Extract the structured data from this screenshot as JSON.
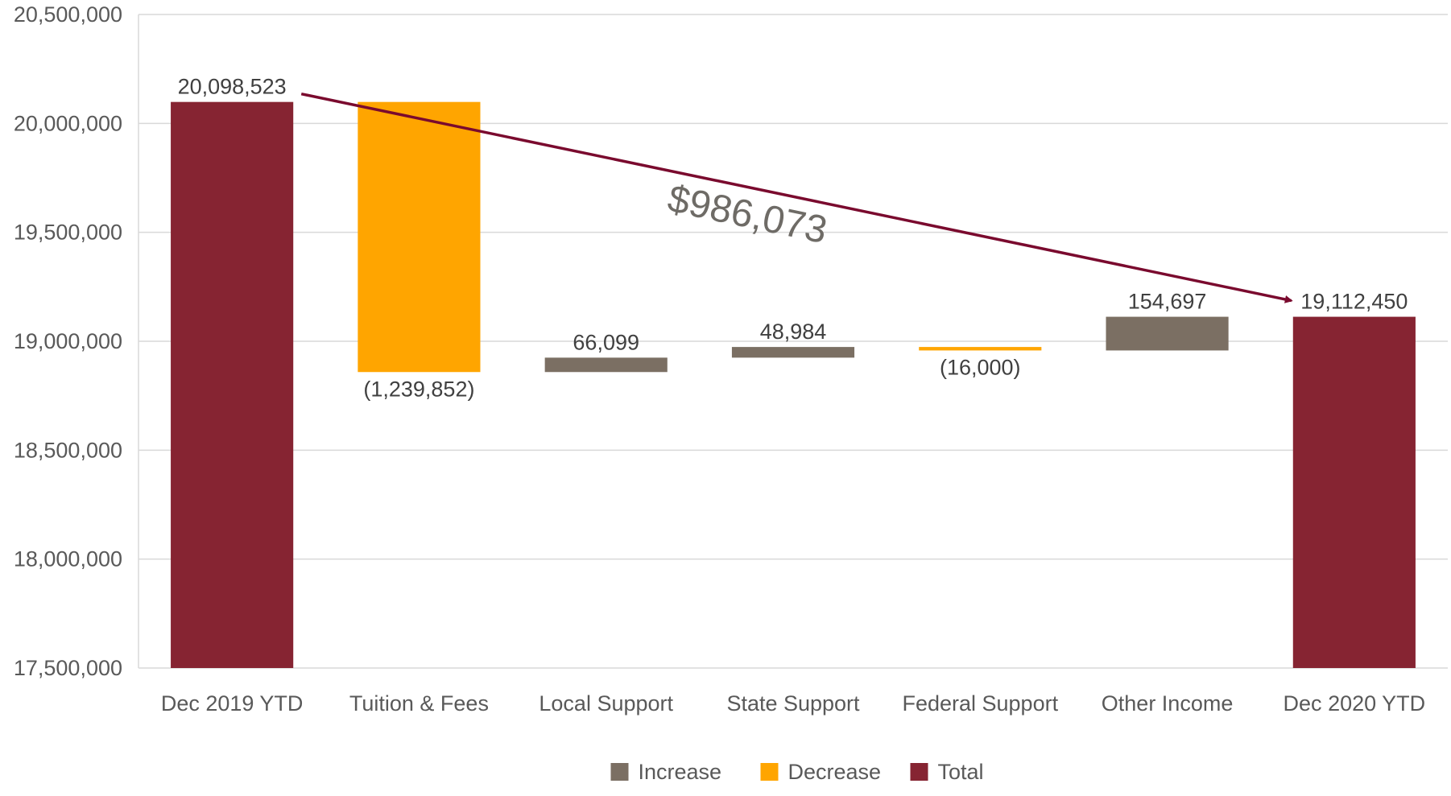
{
  "chart_data": {
    "type": "bar",
    "subtype": "waterfall",
    "title": "",
    "xlabel": "",
    "ylabel": "",
    "ylim": [
      17500000,
      20500000
    ],
    "yticks": [
      "17,500,000",
      "18,000,000",
      "18,500,000",
      "19,000,000",
      "19,500,000",
      "20,000,000",
      "20,500,000"
    ],
    "ytick_values": [
      17500000,
      18000000,
      18500000,
      19000000,
      19500000,
      20000000,
      20500000
    ],
    "grid": true,
    "categories": [
      "Dec 2019 YTD",
      "Tuition & Fees",
      "Local Support",
      "State Support",
      "Federal Support",
      "Other Income",
      "Dec 2020 YTD"
    ],
    "bars": [
      {
        "kind": "Total",
        "start": 17500000,
        "end": 20098523,
        "label": "20,098,523"
      },
      {
        "kind": "Decrease",
        "start": 20098523,
        "end": 18858671,
        "label": "(1,239,852)"
      },
      {
        "kind": "Increase",
        "start": 18858671,
        "end": 18924770,
        "label": "66,099"
      },
      {
        "kind": "Increase",
        "start": 18924770,
        "end": 18973754,
        "label": "48,984"
      },
      {
        "kind": "Decrease",
        "start": 18973754,
        "end": 18957754,
        "label": "(16,000)"
      },
      {
        "kind": "Increase",
        "start": 18957754,
        "end": 19112451,
        "label": "154,697"
      },
      {
        "kind": "Total",
        "start": 17500000,
        "end": 19112450,
        "label": "19,112,450"
      }
    ],
    "legend": {
      "position": "bottom",
      "entries": [
        {
          "name": "Increase",
          "color": "#7b6f63"
        },
        {
          "name": "Decrease",
          "color": "#ffa500"
        },
        {
          "name": "Total",
          "color": "#862432"
        }
      ]
    },
    "annotation": {
      "text": "$986,073",
      "arrow_color": "#7a0a2e"
    }
  }
}
